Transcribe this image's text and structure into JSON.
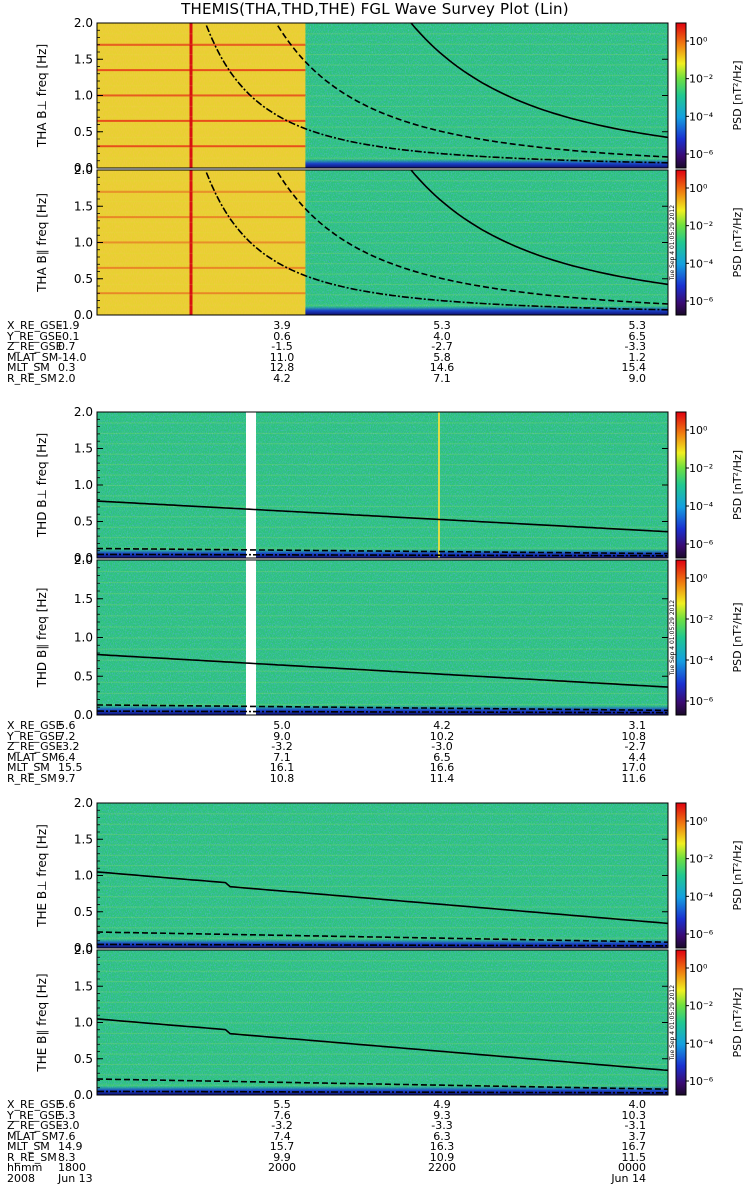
{
  "title": "THEMIS(THA,THD,THE) FGL Wave Survey Plot (Lin)",
  "colorbar": {
    "label": "PSD [nT²/Hz]",
    "ticks": [
      "10⁰",
      "10⁻²",
      "10⁻⁴",
      "10⁻⁶"
    ],
    "stamp": "Tue Sep  4 01:05:29 2012"
  },
  "chart_data": [
    {
      "type": "heatmap",
      "panel": "THA B⊥",
      "ylabel": "THA B⊥  freq [Hz]",
      "yticks": [
        "2.0",
        "1.5",
        "1.0",
        "0.5",
        "0.0"
      ],
      "ylim": [
        0,
        2.0
      ],
      "colors": {
        "high": "#e8361a",
        "mid": "#f0e020",
        "low": "#2bc27a",
        "min": "#1c1c9a"
      },
      "overlay": {
        "solid": [
          [
            0.55,
            2.5
          ],
          [
            1.0,
            0.85
          ]
        ],
        "dashed": [
          [
            0.27,
            2.3
          ],
          [
            1.0,
            0.18
          ]
        ],
        "dashdot": [
          [
            0.14,
            2.2
          ],
          [
            1.0,
            0.05
          ]
        ]
      }
    },
    {
      "type": "heatmap",
      "panel": "THA B∥",
      "ylabel": "THA B∥  freq [Hz]",
      "yticks": [
        "2.0",
        "1.5",
        "1.0",
        "0.5",
        "0.0"
      ],
      "ylim": [
        0,
        2.0
      ]
    },
    {
      "type": "heatmap",
      "panel": "THD B⊥",
      "ylabel": "THD B⊥  freq [Hz]",
      "yticks": [
        "2.0",
        "1.5",
        "1.0",
        "0.5",
        "0.0"
      ],
      "ylim": [
        0,
        2.0
      ]
    },
    {
      "type": "heatmap",
      "panel": "THD B∥",
      "ylabel": "THD B∥  freq [Hz]",
      "yticks": [
        "2.0",
        "1.5",
        "1.0",
        "0.5",
        "0.0"
      ],
      "ylim": [
        0,
        2.0
      ]
    },
    {
      "type": "heatmap",
      "panel": "THE B⊥",
      "ylabel": "THE B⊥  freq [Hz]",
      "yticks": [
        "2.0",
        "1.5",
        "1.0",
        "0.5",
        "0.0"
      ],
      "ylim": [
        0,
        2.0
      ]
    },
    {
      "type": "heatmap",
      "panel": "THE B∥",
      "ylabel": "THE B∥  freq [Hz]",
      "yticks": [
        "2.0",
        "1.5",
        "1.0",
        "0.5",
        "0.0"
      ],
      "ylim": [
        0,
        2.0
      ]
    }
  ],
  "ephemeris": {
    "tha": {
      "labels": [
        "X_RE_GSE",
        "Y_RE_GSE",
        "Z_RE_GSE",
        "MLAT_SM",
        "MLT_SM",
        "R_RE_SM"
      ],
      "columns": [
        [
          "-1.9",
          "-0.1",
          "0.7",
          "-14.0",
          "0.3",
          "2.0"
        ],
        [
          "3.9",
          "0.6",
          "-1.5",
          "11.0",
          "12.8",
          "4.2"
        ],
        [
          "5.3",
          "4.0",
          "-2.7",
          "5.8",
          "14.6",
          "7.1"
        ],
        [
          "5.3",
          "6.5",
          "-3.3",
          "1.2",
          "15.4",
          "9.0"
        ]
      ]
    },
    "thd": {
      "labels": [
        "X_RE_GSE",
        "Y_RE_GSE",
        "Z_RE_GSE",
        "MLAT_SM",
        "MLT_SM",
        "R_RE_SM"
      ],
      "columns": [
        [
          "5.6",
          "7.2",
          "-3.2",
          "6.4",
          "15.5",
          "9.7"
        ],
        [
          "5.0",
          "9.0",
          "-3.2",
          "7.1",
          "16.1",
          "10.8"
        ],
        [
          "4.2",
          "10.2",
          "-3.0",
          "6.5",
          "16.6",
          "11.4"
        ],
        [
          "3.1",
          "10.8",
          "-2.7",
          "4.4",
          "17.0",
          "11.6"
        ]
      ]
    },
    "the": {
      "labels": [
        "X_RE_GSE",
        "Y_RE_GSE",
        "Z_RE_GSE",
        "MLAT_SM",
        "MLT_SM",
        "R_RE_SM",
        "hhmm",
        "2008"
      ],
      "columns": [
        [
          "5.6",
          "5.3",
          "-3.0",
          "7.6",
          "14.9",
          "8.3",
          "1800",
          "Jun 13"
        ],
        [
          "5.5",
          "7.6",
          "-3.2",
          "7.4",
          "15.7",
          "9.9",
          "2000",
          ""
        ],
        [
          "4.9",
          "9.3",
          "-3.3",
          "6.3",
          "16.3",
          "10.9",
          "2200",
          ""
        ],
        [
          "4.0",
          "10.3",
          "-3.1",
          "3.7",
          "16.7",
          "11.5",
          "0000",
          "Jun 14"
        ]
      ]
    }
  }
}
